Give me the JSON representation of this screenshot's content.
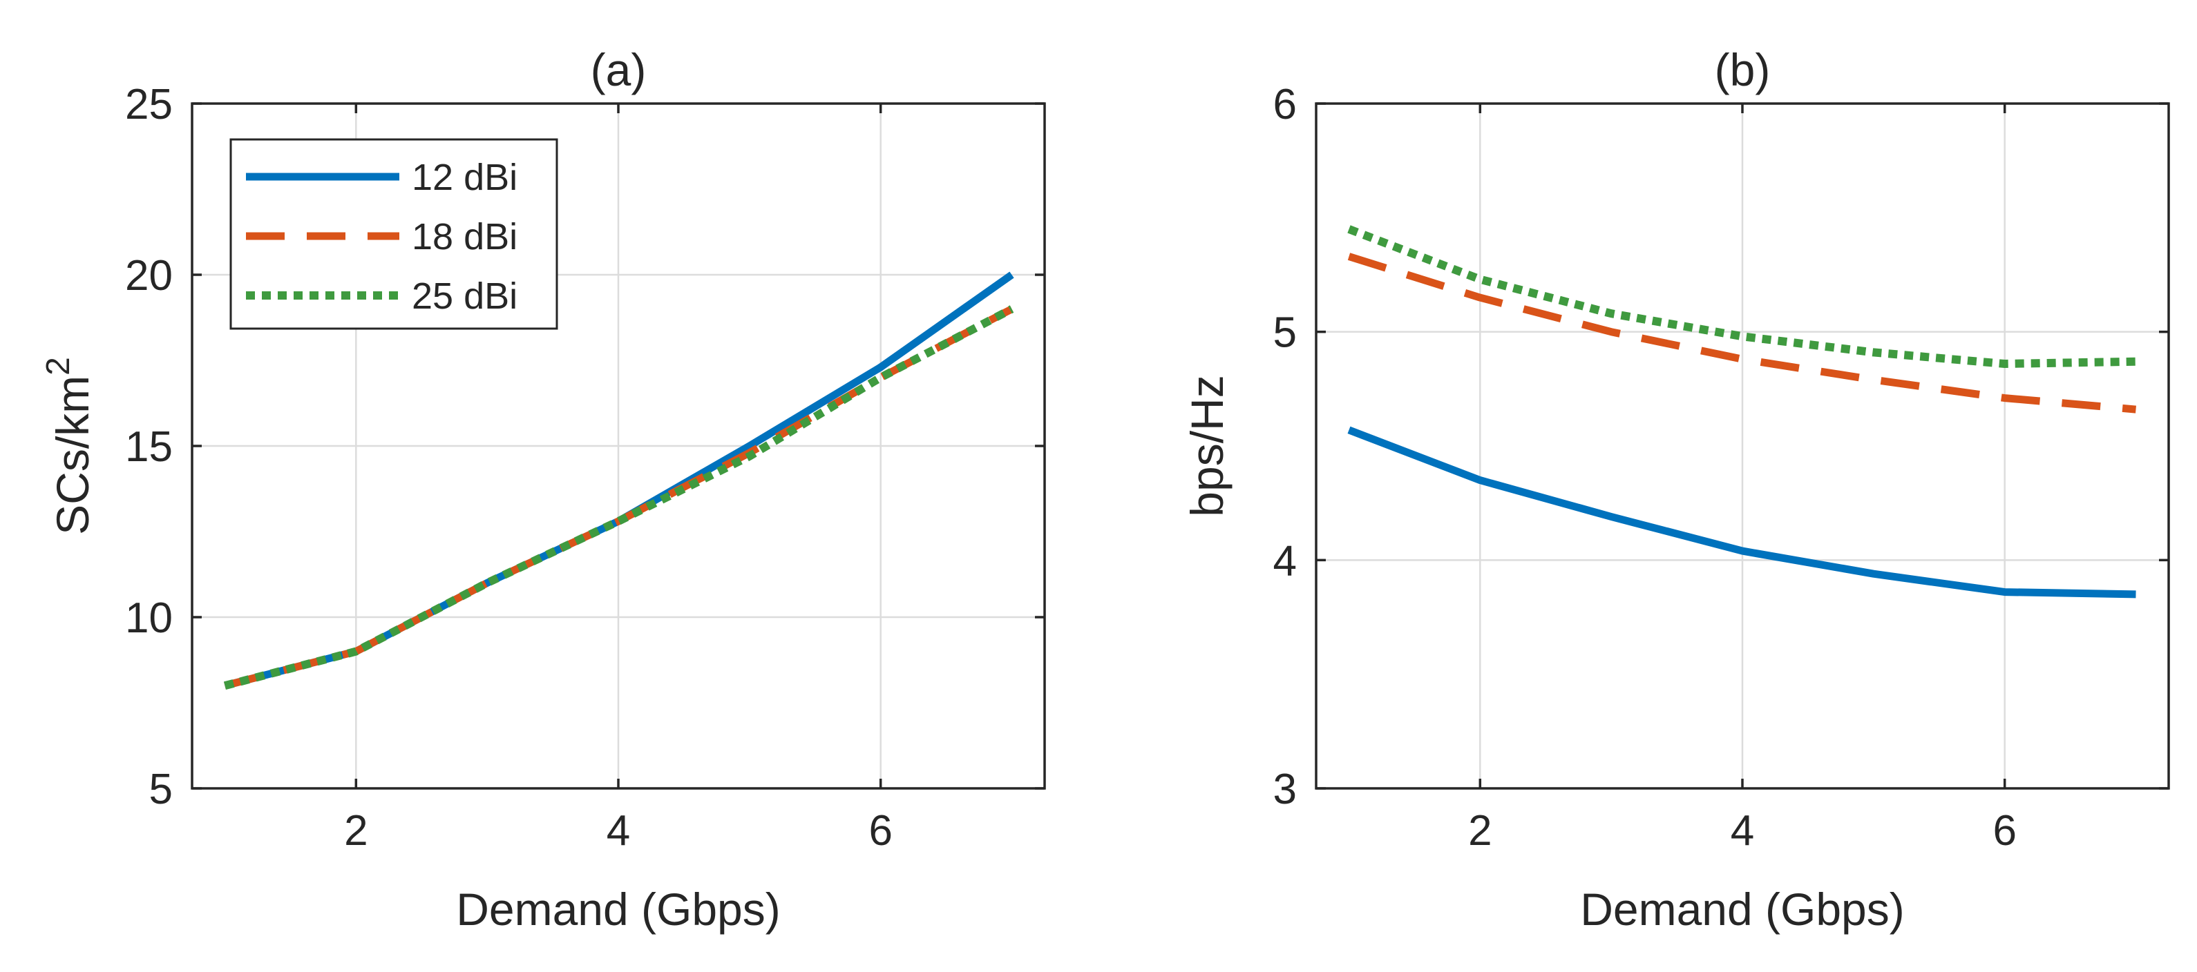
{
  "chart_data": [
    {
      "type": "line",
      "title": "(a)",
      "xlabel": "Demand (Gbps)",
      "ylabel": "SCs/km",
      "ylabel_superscript": "2",
      "xlim": [
        0.75,
        7.25
      ],
      "ylim": [
        5,
        25
      ],
      "xticks": [
        2,
        4,
        6
      ],
      "yticks": [
        5,
        10,
        15,
        20,
        25
      ],
      "grid": true,
      "legend_position": "top-left",
      "x": [
        1,
        2,
        3,
        4,
        5,
        6,
        7
      ],
      "series": [
        {
          "name": "12 dBi",
          "style": "solid",
          "color": "#0072BD",
          "values": [
            8,
            9,
            11,
            12.8,
            15,
            17.3,
            20
          ]
        },
        {
          "name": "18 dBi",
          "style": "dashed",
          "color": "#D95319",
          "values": [
            8,
            9,
            11,
            12.8,
            14.8,
            17.0,
            19.0
          ]
        },
        {
          "name": "25 dBi",
          "style": "dotted",
          "color": "#3F9A3F",
          "values": [
            8,
            9,
            11,
            12.8,
            14.7,
            17.0,
            19.0
          ]
        }
      ]
    },
    {
      "type": "line",
      "title": "(b)",
      "xlabel": "Demand (Gbps)",
      "ylabel": "bps/Hz",
      "xlim": [
        0.75,
        7.25
      ],
      "ylim": [
        3,
        6
      ],
      "xticks": [
        2,
        4,
        6
      ],
      "yticks": [
        3,
        4,
        5,
        6
      ],
      "grid": true,
      "x": [
        1,
        2,
        3,
        4,
        5,
        6,
        7
      ],
      "series": [
        {
          "name": "12 dBi",
          "style": "solid",
          "color": "#0072BD",
          "values": [
            4.57,
            4.35,
            4.19,
            4.04,
            3.94,
            3.86,
            3.85
          ]
        },
        {
          "name": "18 dBi",
          "style": "dashed",
          "color": "#D95319",
          "values": [
            5.33,
            5.15,
            5.0,
            4.88,
            4.79,
            4.71,
            4.66
          ]
        },
        {
          "name": "25 dBi",
          "style": "dotted",
          "color": "#3F9A3F",
          "values": [
            5.45,
            5.23,
            5.08,
            4.98,
            4.91,
            4.86,
            4.87
          ]
        }
      ]
    }
  ]
}
